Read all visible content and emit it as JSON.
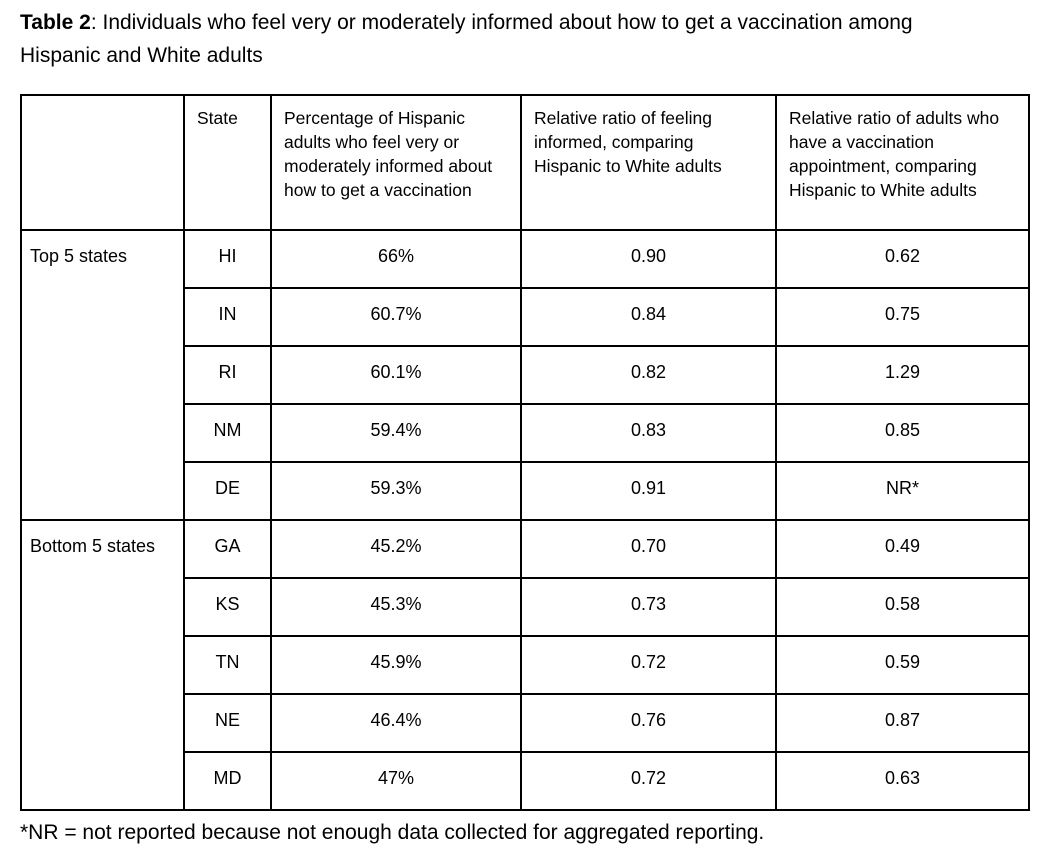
{
  "title": {
    "label": "Table 2",
    "rest": ": Individuals who feel very or moderately informed about how to get a vaccination among Hispanic and White adults"
  },
  "table": {
    "headers": [
      "",
      "State",
      "Percentage of Hispanic adults who feel very or moderately informed about how to get a vaccination",
      "Relative ratio of feeling informed, comparing Hispanic to White adults",
      "Relative ratio of adults who have a vaccination appointment, comparing Hispanic to White adults"
    ],
    "groups": [
      {
        "label": "Top 5 states",
        "rows": [
          {
            "state": "HI",
            "percentage": "66%",
            "ratio_informed": "0.90",
            "ratio_appointment": "0.62"
          },
          {
            "state": "IN",
            "percentage": "60.7%",
            "ratio_informed": "0.84",
            "ratio_appointment": "0.75"
          },
          {
            "state": "RI",
            "percentage": "60.1%",
            "ratio_informed": "0.82",
            "ratio_appointment": "1.29"
          },
          {
            "state": "NM",
            "percentage": "59.4%",
            "ratio_informed": "0.83",
            "ratio_appointment": "0.85"
          },
          {
            "state": "DE",
            "percentage": "59.3%",
            "ratio_informed": "0.91",
            "ratio_appointment": "NR*"
          }
        ]
      },
      {
        "label": "Bottom 5 states",
        "rows": [
          {
            "state": "GA",
            "percentage": "45.2%",
            "ratio_informed": "0.70",
            "ratio_appointment": "0.49"
          },
          {
            "state": "KS",
            "percentage": "45.3%",
            "ratio_informed": "0.73",
            "ratio_appointment": "0.58"
          },
          {
            "state": "TN",
            "percentage": "45.9%",
            "ratio_informed": "0.72",
            "ratio_appointment": "0.59"
          },
          {
            "state": "NE",
            "percentage": "46.4%",
            "ratio_informed": "0.76",
            "ratio_appointment": "0.87"
          },
          {
            "state": "MD",
            "percentage": "47%",
            "ratio_informed": "0.72",
            "ratio_appointment": "0.63"
          }
        ]
      }
    ]
  },
  "footnote": "*NR = not reported because not enough data collected for aggregated reporting."
}
